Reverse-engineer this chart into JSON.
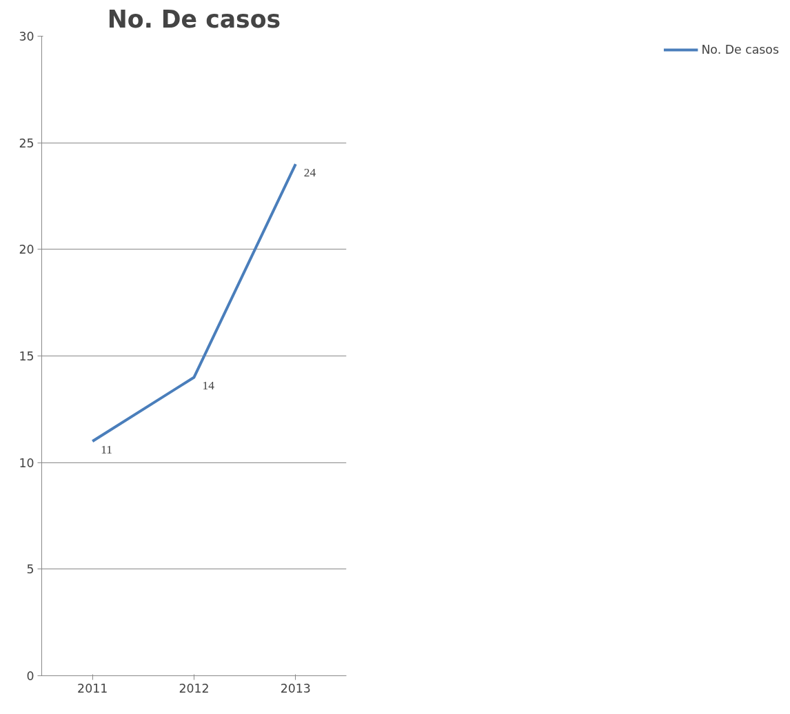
{
  "chart_data": {
    "type": "line",
    "title": "No. De casos",
    "categories": [
      "2011",
      "2012",
      "2013"
    ],
    "series": [
      {
        "name": "No. De casos",
        "color": "#4a7ebb",
        "values": [
          11,
          14,
          24
        ]
      }
    ],
    "ylim": [
      0,
      30
    ],
    "yticks": [
      0,
      5,
      10,
      15,
      20,
      25,
      30
    ],
    "grid": "y",
    "legend": "right",
    "data_labels": true,
    "marker": "none"
  }
}
